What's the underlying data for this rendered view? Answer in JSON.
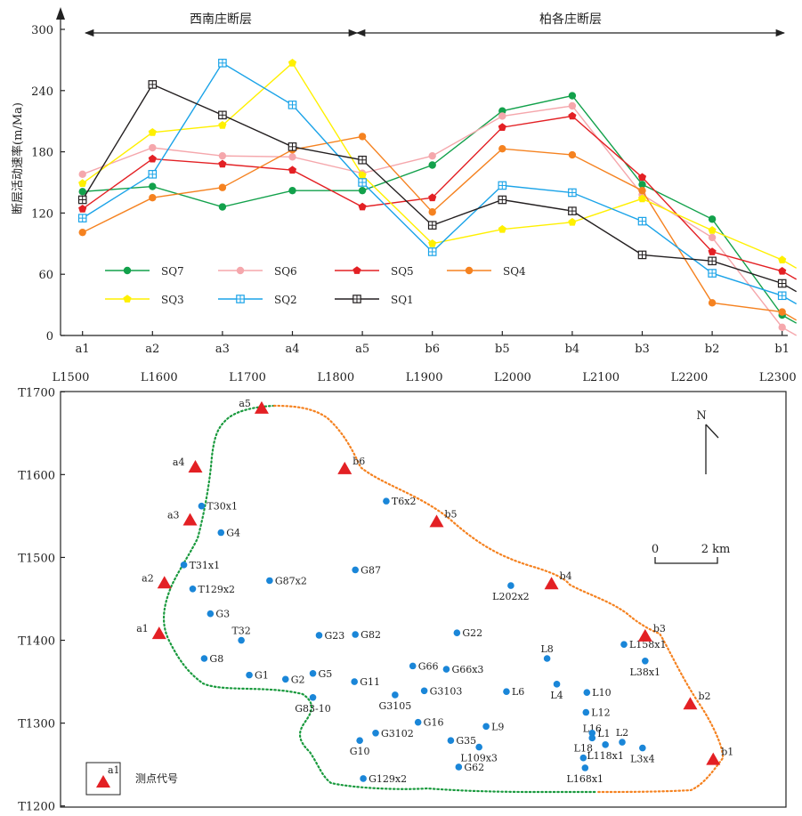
{
  "top_chart": {
    "ylabel": "断层活动速率(m/Ma)",
    "y_ticks": [
      "0",
      "60",
      "120",
      "180",
      "240",
      "300"
    ],
    "regions": [
      {
        "label": "西南庄断层",
        "from": "a1",
        "to": "a5"
      },
      {
        "label": "柏各庄断层",
        "from": "a5",
        "to": "b1"
      }
    ]
  },
  "map": {
    "x_ticks": [
      "L1500",
      "L1600",
      "L1700",
      "L1800",
      "L1900",
      "L2000",
      "L2100",
      "L2200",
      "L2300"
    ],
    "y_ticks": [
      "T1700",
      "T1600",
      "T1500",
      "T1400",
      "T1300",
      "T1200"
    ],
    "north_label": "N",
    "scale": {
      "zero": "0",
      "length_label": "2 km"
    },
    "legend_symbol_label": "a1",
    "legend_text": "测点代号",
    "measure_points": [
      {
        "name": "a1",
        "L": 1600,
        "T": 1408
      },
      {
        "name": "a2",
        "L": 1606,
        "T": 1469
      },
      {
        "name": "a3",
        "L": 1635,
        "T": 1545
      },
      {
        "name": "a4",
        "L": 1641,
        "T": 1609
      },
      {
        "name": "a5",
        "L": 1716,
        "T": 1680
      },
      {
        "name": "b6",
        "L": 1810,
        "T": 1607
      },
      {
        "name": "b5",
        "L": 1914,
        "T": 1543
      },
      {
        "name": "b4",
        "L": 2044,
        "T": 1468
      },
      {
        "name": "b3",
        "L": 2150,
        "T": 1405
      },
      {
        "name": "b2",
        "L": 2201,
        "T": 1323
      },
      {
        "name": "b1",
        "L": 2227,
        "T": 1256
      }
    ],
    "wells": [
      {
        "name": "T30x1",
        "L": 1648,
        "T": 1562
      },
      {
        "name": "G4",
        "L": 1670,
        "T": 1530
      },
      {
        "name": "T31x1",
        "L": 1628,
        "T": 1491
      },
      {
        "name": "T129x2",
        "L": 1638,
        "T": 1462
      },
      {
        "name": "G87x2",
        "L": 1725,
        "T": 1472
      },
      {
        "name": "G87",
        "L": 1822,
        "T": 1485
      },
      {
        "name": "T6x2",
        "L": 1857,
        "T": 1568
      },
      {
        "name": "L202x2",
        "L": 1998,
        "T": 1466
      },
      {
        "name": "G3",
        "L": 1658,
        "T": 1432
      },
      {
        "name": "T32",
        "L": 1693,
        "T": 1400
      },
      {
        "name": "G23",
        "L": 1781,
        "T": 1406
      },
      {
        "name": "G82",
        "L": 1822,
        "T": 1407
      },
      {
        "name": "G22",
        "L": 1937,
        "T": 1409
      },
      {
        "name": "G8",
        "L": 1651,
        "T": 1378
      },
      {
        "name": "G1",
        "L": 1702,
        "T": 1358
      },
      {
        "name": "G2",
        "L": 1743,
        "T": 1353
      },
      {
        "name": "G5",
        "L": 1774,
        "T": 1360
      },
      {
        "name": "G11",
        "L": 1821,
        "T": 1350
      },
      {
        "name": "G83-10",
        "L": 1774,
        "T": 1331
      },
      {
        "name": "G66",
        "L": 1887,
        "T": 1369
      },
      {
        "name": "G66x3",
        "L": 1925,
        "T": 1365
      },
      {
        "name": "G3105",
        "L": 1867,
        "T": 1334
      },
      {
        "name": "G3103",
        "L": 1900,
        "T": 1339
      },
      {
        "name": "G16",
        "L": 1893,
        "T": 1301
      },
      {
        "name": "G3102",
        "L": 1845,
        "T": 1288
      },
      {
        "name": "G10",
        "L": 1827,
        "T": 1279
      },
      {
        "name": "G35",
        "L": 1930,
        "T": 1279
      },
      {
        "name": "L9",
        "L": 1970,
        "T": 1296
      },
      {
        "name": "L109x3",
        "L": 1962,
        "T": 1271
      },
      {
        "name": "G62",
        "L": 1939,
        "T": 1247
      },
      {
        "name": "G129x2",
        "L": 1831,
        "T": 1233
      },
      {
        "name": "L6",
        "L": 1993,
        "T": 1338
      },
      {
        "name": "L8",
        "L": 2039,
        "T": 1378
      },
      {
        "name": "L4",
        "L": 2050,
        "T": 1347
      },
      {
        "name": "L10",
        "L": 2084,
        "T": 1337
      },
      {
        "name": "L12",
        "L": 2083,
        "T": 1313
      },
      {
        "name": "L16",
        "L": 2090,
        "T": 1282
      },
      {
        "name": "L1",
        "L": 2090,
        "T": 1288
      },
      {
        "name": "L118x1",
        "L": 2105,
        "T": 1274
      },
      {
        "name": "L2",
        "L": 2124,
        "T": 1277
      },
      {
        "name": "L3x4",
        "L": 2147,
        "T": 1270
      },
      {
        "name": "L18",
        "L": 2080,
        "T": 1258
      },
      {
        "name": "L168x1",
        "L": 2082,
        "T": 1246
      },
      {
        "name": "L158x1",
        "L": 2126,
        "T": 1395
      },
      {
        "name": "L38x1",
        "L": 2150,
        "T": 1375
      }
    ]
  },
  "chart_data": {
    "type": "line",
    "categories": [
      "a1",
      "a2",
      "a3",
      "a4",
      "a5",
      "b6",
      "b5",
      "b4",
      "b3",
      "b2",
      "b1"
    ],
    "ylabel": "断层活动速率(m/Ma)",
    "ylim": [
      0,
      300
    ],
    "region_labels": [
      "西南庄断层",
      "柏各庄断层"
    ],
    "legend_position": "bottom-left (inside plot)",
    "series": [
      {
        "name": "SQ7",
        "color": "#12a14b",
        "marker": "circle",
        "values": [
          141,
          146,
          126,
          142,
          142,
          167,
          220,
          235,
          148,
          114,
          20
        ]
      },
      {
        "name": "SQ6",
        "color": "#f5a7ac",
        "marker": "circle",
        "values": [
          158,
          184,
          176,
          175,
          159,
          176,
          215,
          225,
          138,
          96,
          8
        ]
      },
      {
        "name": "SQ5",
        "color": "#e32024",
        "marker": "pentagon",
        "values": [
          124,
          173,
          168,
          162,
          126,
          135,
          204,
          215,
          155,
          82,
          63
        ]
      },
      {
        "name": "SQ4",
        "color": "#f58220",
        "marker": "circle",
        "values": [
          101,
          135,
          145,
          182,
          195,
          121,
          183,
          177,
          142,
          32,
          23
        ]
      },
      {
        "name": "SQ3",
        "color": "#fff000",
        "marker": "pentagon",
        "values": [
          149,
          199,
          206,
          267,
          157,
          90,
          104,
          111,
          134,
          103,
          74
        ]
      },
      {
        "name": "SQ2",
        "color": "#1aa3e8",
        "marker": "square",
        "values": [
          115,
          158,
          267,
          226,
          150,
          82,
          147,
          140,
          112,
          61,
          39
        ]
      },
      {
        "name": "SQ1",
        "color": "#231f20",
        "marker": "square",
        "values": [
          133,
          246,
          216,
          185,
          172,
          108,
          133,
          122,
          79,
          73,
          51
        ]
      }
    ]
  }
}
